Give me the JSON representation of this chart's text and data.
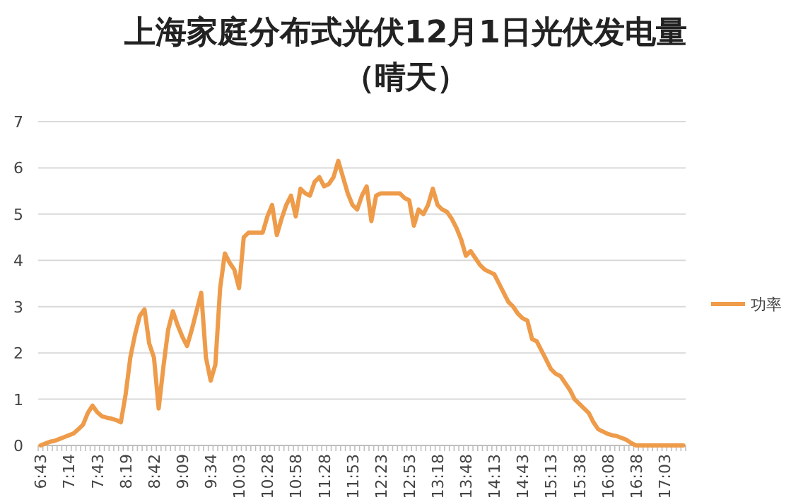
{
  "chart_data": {
    "type": "line",
    "title": "上海家庭分布式光伏12月1日光伏发电量",
    "subtitle": "（晴天）",
    "categories": [
      "6:43",
      null,
      null,
      null,
      null,
      null,
      "7:14",
      null,
      null,
      null,
      null,
      null,
      "7:43",
      null,
      null,
      null,
      null,
      null,
      "8:19",
      null,
      null,
      null,
      null,
      null,
      "8:42",
      null,
      null,
      null,
      null,
      null,
      "9:09",
      null,
      null,
      null,
      null,
      null,
      "9:34",
      null,
      null,
      null,
      null,
      null,
      "10:03",
      null,
      null,
      null,
      null,
      null,
      "10:28",
      null,
      null,
      null,
      null,
      null,
      "10:58",
      null,
      null,
      null,
      null,
      null,
      "11:28",
      null,
      null,
      null,
      null,
      null,
      "11:53",
      null,
      null,
      null,
      null,
      null,
      "12:23",
      null,
      null,
      null,
      null,
      null,
      "12:53",
      null,
      null,
      null,
      null,
      null,
      "13:18",
      null,
      null,
      null,
      null,
      null,
      "13:48",
      null,
      null,
      null,
      null,
      null,
      "14:13",
      null,
      null,
      null,
      null,
      null,
      "14:43",
      null,
      null,
      null,
      null,
      null,
      "15:13",
      null,
      null,
      null,
      null,
      null,
      "15:38",
      null,
      null,
      null,
      null,
      null,
      "16:08",
      null,
      null,
      null,
      null,
      null,
      "16:38",
      null,
      null,
      null,
      null,
      null,
      "17:03",
      null,
      null,
      null,
      null
    ],
    "series": [
      {
        "name": "功率",
        "color": "#ee9b4a",
        "values": [
          0,
          0.04,
          0.08,
          0.1,
          0.14,
          0.18,
          0.22,
          0.26,
          0.35,
          0.45,
          0.7,
          0.86,
          0.72,
          0.63,
          0.6,
          0.58,
          0.55,
          0.5,
          1.1,
          1.9,
          2.4,
          2.8,
          2.94,
          2.2,
          1.9,
          0.8,
          1.7,
          2.5,
          2.9,
          2.6,
          2.35,
          2.15,
          2.5,
          2.9,
          3.3,
          1.9,
          1.4,
          1.75,
          3.4,
          4.15,
          3.95,
          3.8,
          3.4,
          4.5,
          4.6,
          4.6,
          4.6,
          4.6,
          4.95,
          5.2,
          4.55,
          4.9,
          5.2,
          5.4,
          4.95,
          5.55,
          5.45,
          5.4,
          5.7,
          5.8,
          5.6,
          5.65,
          5.8,
          6.15,
          5.8,
          5.45,
          5.2,
          5.1,
          5.4,
          5.6,
          4.85,
          5.4,
          5.45,
          5.45,
          5.45,
          5.45,
          5.45,
          5.35,
          5.3,
          4.75,
          5.1,
          5.0,
          5.2,
          5.55,
          5.2,
          5.1,
          5.05,
          4.9,
          4.7,
          4.45,
          4.1,
          4.2,
          4.05,
          3.9,
          3.8,
          3.75,
          3.7,
          3.5,
          3.3,
          3.1,
          3.0,
          2.85,
          2.75,
          2.7,
          2.3,
          2.25,
          2.05,
          1.85,
          1.65,
          1.55,
          1.5,
          1.35,
          1.2,
          1.0,
          0.9,
          0.8,
          0.7,
          0.5,
          0.35,
          0.3,
          0.25,
          0.22,
          0.2,
          0.16,
          0.12,
          0.05,
          0,
          0,
          0,
          0,
          0,
          0,
          0,
          0,
          0,
          0,
          0
        ]
      }
    ],
    "ylim": [
      0,
      7
    ],
    "yticks": [
      0,
      1,
      2,
      3,
      4,
      5,
      6,
      7
    ],
    "grid": "y",
    "legend": "right",
    "marker": "none",
    "line_style": "solid"
  }
}
